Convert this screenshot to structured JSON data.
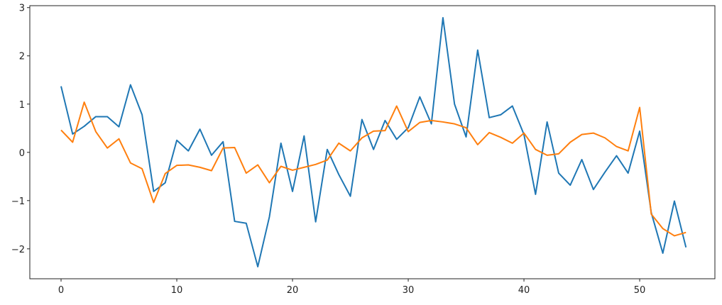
{
  "chart_data": {
    "type": "line",
    "x": [
      0,
      1,
      2,
      3,
      4,
      5,
      6,
      7,
      8,
      9,
      10,
      11,
      12,
      13,
      14,
      15,
      16,
      17,
      18,
      19,
      20,
      21,
      22,
      23,
      24,
      25,
      26,
      27,
      28,
      29,
      30,
      31,
      32,
      33,
      34,
      35,
      36,
      37,
      38,
      39,
      40,
      41,
      42,
      43,
      44,
      45,
      46,
      47,
      48,
      49,
      50,
      51,
      52,
      53,
      54
    ],
    "series": [
      {
        "color": "#1f77b4",
        "values": [
          1.37,
          0.38,
          0.54,
          0.74,
          0.74,
          0.53,
          1.4,
          0.78,
          -0.81,
          -0.63,
          0.25,
          0.03,
          0.48,
          -0.06,
          0.22,
          -1.43,
          -1.47,
          -2.37,
          -1.34,
          0.19,
          -0.81,
          0.34,
          -1.44,
          0.06,
          -0.46,
          -0.91,
          0.68,
          0.06,
          0.66,
          0.27,
          0.51,
          1.15,
          0.59,
          2.79,
          1.0,
          0.32,
          2.12,
          0.72,
          0.78,
          0.96,
          0.37,
          -0.87,
          0.63,
          -0.43,
          -0.68,
          -0.15,
          -0.77,
          -0.41,
          -0.07,
          -0.43,
          0.44,
          -1.25,
          -2.09,
          -1.01,
          -1.97
        ]
      },
      {
        "color": "#ff7f0e",
        "values": [
          0.46,
          0.21,
          1.04,
          0.43,
          0.09,
          0.28,
          -0.22,
          -0.34,
          -1.04,
          -0.44,
          -0.27,
          -0.26,
          -0.31,
          -0.38,
          0.09,
          0.1,
          -0.43,
          -0.26,
          -0.63,
          -0.29,
          -0.37,
          -0.31,
          -0.25,
          -0.16,
          0.19,
          0.03,
          0.3,
          0.44,
          0.45,
          0.96,
          0.43,
          0.62,
          0.66,
          0.63,
          0.59,
          0.51,
          0.16,
          0.41,
          0.31,
          0.19,
          0.4,
          0.06,
          -0.06,
          -0.03,
          0.21,
          0.37,
          0.4,
          0.3,
          0.12,
          0.03,
          0.93,
          -1.28,
          -1.58,
          -1.73,
          -1.66
        ]
      }
    ],
    "xlim": [
      -2.7,
      56.5
    ],
    "ylim": [
      -2.62,
      3.04
    ],
    "xticks": [
      0,
      10,
      20,
      30,
      40,
      50
    ],
    "yticks": [
      {
        "value": -2,
        "label": "−2"
      },
      {
        "value": -1,
        "label": "−1"
      },
      0,
      1,
      2,
      3
    ]
  }
}
